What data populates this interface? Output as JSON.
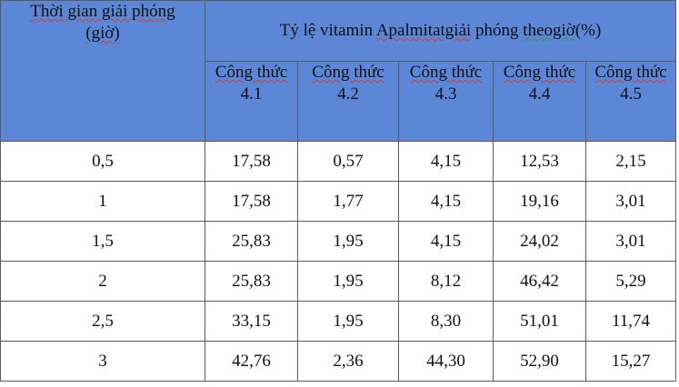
{
  "table": {
    "time_header": {
      "line1": "Thời gian giải phóng",
      "line2": "(giờ)"
    },
    "group_header": {
      "prefix": "Tỷ lệ vitamin ",
      "word_a": "Apalmitatgiải",
      "middle": " phóng ",
      "word_b": "theogiờ",
      "suffix": "(%)"
    },
    "formula_headers": [
      {
        "line1": "Công thức",
        "line2": "4.1"
      },
      {
        "line1": "Công thức",
        "line2": "4.2"
      },
      {
        "line1": "Công thức",
        "line2": "4.3"
      },
      {
        "line1": "Công thức",
        "line2": "4.4"
      },
      {
        "line1": "Công thức",
        "line2": "4.5"
      }
    ],
    "rows": [
      {
        "time": "0,5",
        "values": [
          "17,58",
          "0,57",
          "4,15",
          "12,53",
          "2,15"
        ]
      },
      {
        "time": "1",
        "values": [
          "17,58",
          "1,77",
          "4,15",
          "19,16",
          "3,01"
        ]
      },
      {
        "time": "1,5",
        "values": [
          "25,83",
          "1,95",
          "4,15",
          "24,02",
          "3,01"
        ]
      },
      {
        "time": "2",
        "values": [
          "25,83",
          "1,95",
          "8,12",
          "46,42",
          "5,29"
        ]
      },
      {
        "time": "2,5",
        "values": [
          "33,15",
          "1,95",
          "8,30",
          "51,01",
          "11,74"
        ]
      },
      {
        "time": "3",
        "values": [
          "42,76",
          "2,36",
          "44,30",
          "52,90",
          "15,27"
        ]
      }
    ]
  },
  "colors": {
    "header_background": "#5b87d6",
    "grid_line": "#5a5a5a",
    "spell_underline": "#d43c3c",
    "grammar_underline": "#3a9a3a"
  }
}
